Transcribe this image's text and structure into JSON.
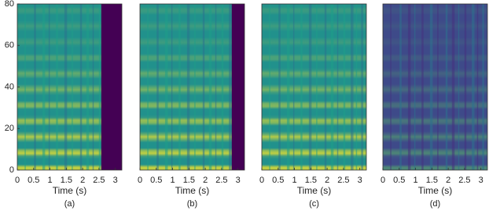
{
  "chart_data": [
    {
      "type": "heatmap",
      "label": "(a)",
      "x_label": "Time (s)",
      "xlim": [
        0,
        3.2
      ],
      "ylim": [
        0,
        80
      ],
      "xticks": [
        0,
        0.5,
        1,
        1.5,
        2,
        2.5,
        3
      ],
      "yticks": [
        0,
        20,
        40,
        60,
        80
      ],
      "color": "#21918c",
      "signal_end": 2.57
    },
    {
      "type": "heatmap",
      "label": "(b)",
      "x_label": "Time (s)",
      "xlim": [
        0,
        3.2
      ],
      "ylim": [
        0,
        80
      ],
      "xticks": [
        0,
        0.5,
        1,
        1.5,
        2,
        2.5,
        3
      ],
      "color": "#21918c",
      "signal_end": 2.81
    },
    {
      "type": "heatmap",
      "label": "(c)",
      "x_label": "Time (s)",
      "xlim": [
        0,
        3.2
      ],
      "ylim": [
        0,
        80
      ],
      "xticks": [
        0,
        0.5,
        1,
        1.5,
        2,
        2.5,
        3
      ],
      "color": "#21918c"
    },
    {
      "type": "heatmap",
      "label": "(d)",
      "x_label": "Time (s)",
      "xlim": [
        0,
        3.2
      ],
      "ylim": [
        0,
        80
      ],
      "xticks": [
        0,
        0.5,
        1,
        1.5,
        2,
        2.5,
        3
      ],
      "color": "#3e4a89"
    }
  ]
}
